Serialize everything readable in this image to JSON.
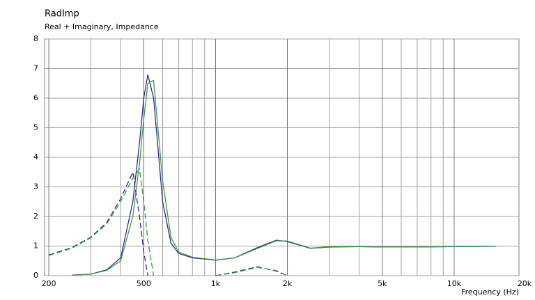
{
  "chart_data": {
    "type": "line",
    "title": "RadImp",
    "subtitle": "Real + Imaginary, Impedance",
    "x_label": "Frequency  (Hz)",
    "log_x": true,
    "grid": true,
    "x": [
      200,
      250,
      300,
      350,
      400,
      450,
      480,
      500,
      520,
      550,
      600,
      650,
      700,
      800,
      1000,
      1200,
      1500,
      1800,
      2000,
      2500,
      3000,
      4000,
      5000,
      7000,
      10000,
      15000
    ],
    "series": [
      {
        "color": "#2a2aa0",
        "dash": false,
        "values": [
          null,
          0.02,
          0.05,
          0.2,
          0.6,
          2.5,
          4.5,
          6.0,
          6.8,
          6.0,
          2.5,
          1.1,
          0.75,
          0.6,
          0.52,
          0.6,
          0.95,
          1.2,
          1.15,
          0.92,
          0.97,
          0.98,
          0.97,
          0.97,
          0.98,
          0.99
        ]
      },
      {
        "color": "#3c9c3c",
        "dash": false,
        "values": [
          null,
          0.02,
          0.05,
          0.18,
          0.5,
          2.0,
          3.8,
          5.3,
          6.5,
          6.6,
          3.2,
          1.3,
          0.8,
          0.62,
          0.53,
          0.6,
          0.92,
          1.18,
          1.17,
          0.93,
          0.98,
          0.98,
          0.97,
          0.97,
          0.98,
          0.99
        ]
      },
      {
        "color": "#2a2aa0",
        "dash": true,
        "values": [
          0.7,
          0.95,
          1.3,
          1.8,
          2.6,
          3.5,
          2.0,
          0.8,
          0.0,
          null,
          null,
          null,
          null,
          null,
          0.0,
          0.12,
          0.3,
          0.15,
          0.0,
          null,
          null,
          null,
          null,
          null,
          null,
          null
        ]
      },
      {
        "color": "#3c9c3c",
        "dash": true,
        "values": [
          0.68,
          0.93,
          1.28,
          1.75,
          2.5,
          3.3,
          3.6,
          2.5,
          1.2,
          0.0,
          null,
          null,
          null,
          null,
          0.0,
          0.1,
          0.28,
          0.17,
          0.0,
          null,
          null,
          null,
          null,
          null,
          null,
          null
        ]
      }
    ],
    "xlim": [
      192,
      18700
    ],
    "ylim": [
      0,
      8
    ],
    "xticks": [
      200,
      500,
      {
        "value": 1000,
        "label": "1k"
      },
      {
        "value": 2000,
        "label": "2k"
      },
      {
        "value": 5000,
        "label": "5k"
      },
      {
        "value": 10000,
        "label": "10k"
      },
      {
        "value": 20000,
        "label": "20k"
      }
    ],
    "xminor": [
      300,
      400,
      600,
      700,
      800,
      900,
      3000,
      4000,
      6000,
      7000,
      8000,
      9000
    ],
    "yticks": [
      0,
      1,
      2,
      3,
      4,
      5,
      6,
      7,
      8
    ]
  }
}
